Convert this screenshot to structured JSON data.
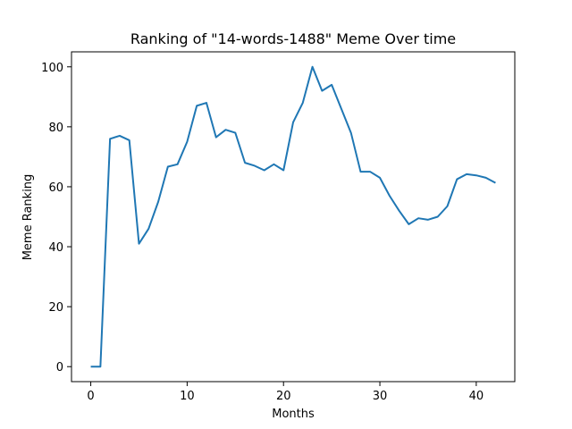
{
  "chart_data": {
    "type": "line",
    "title": "Ranking of \"14-words-1488\" Meme Over time",
    "xlabel": "Months",
    "ylabel": "Meme Ranking",
    "xlim": [
      -2,
      44
    ],
    "ylim": [
      -5,
      105
    ],
    "xticks": [
      0,
      10,
      20,
      30,
      40
    ],
    "yticks": [
      0,
      20,
      40,
      60,
      80,
      100
    ],
    "grid": false,
    "line_color": "#1f77b4",
    "series": [
      {
        "x": [
          0,
          1,
          2,
          3,
          4,
          5,
          6,
          7,
          8,
          9,
          10,
          11,
          12,
          13,
          14,
          15,
          16,
          17,
          18,
          19,
          20,
          21,
          22,
          23,
          24,
          25,
          26,
          27,
          28,
          29,
          30,
          31,
          32,
          33,
          34,
          35,
          36,
          37,
          38,
          39,
          40,
          41,
          42
        ],
        "values": [
          0,
          0,
          76,
          77,
          75.5,
          41,
          46,
          55,
          66.7,
          67.5,
          75,
          87,
          88,
          76.5,
          79,
          78,
          68,
          67,
          65.5,
          67.5,
          65.5,
          81.5,
          88,
          100,
          92,
          94,
          86,
          78,
          65,
          65,
          63,
          57,
          52,
          47.5,
          49.5,
          49,
          50,
          53.5,
          62.5,
          64.2,
          63.8,
          63,
          61.3
        ]
      }
    ]
  }
}
